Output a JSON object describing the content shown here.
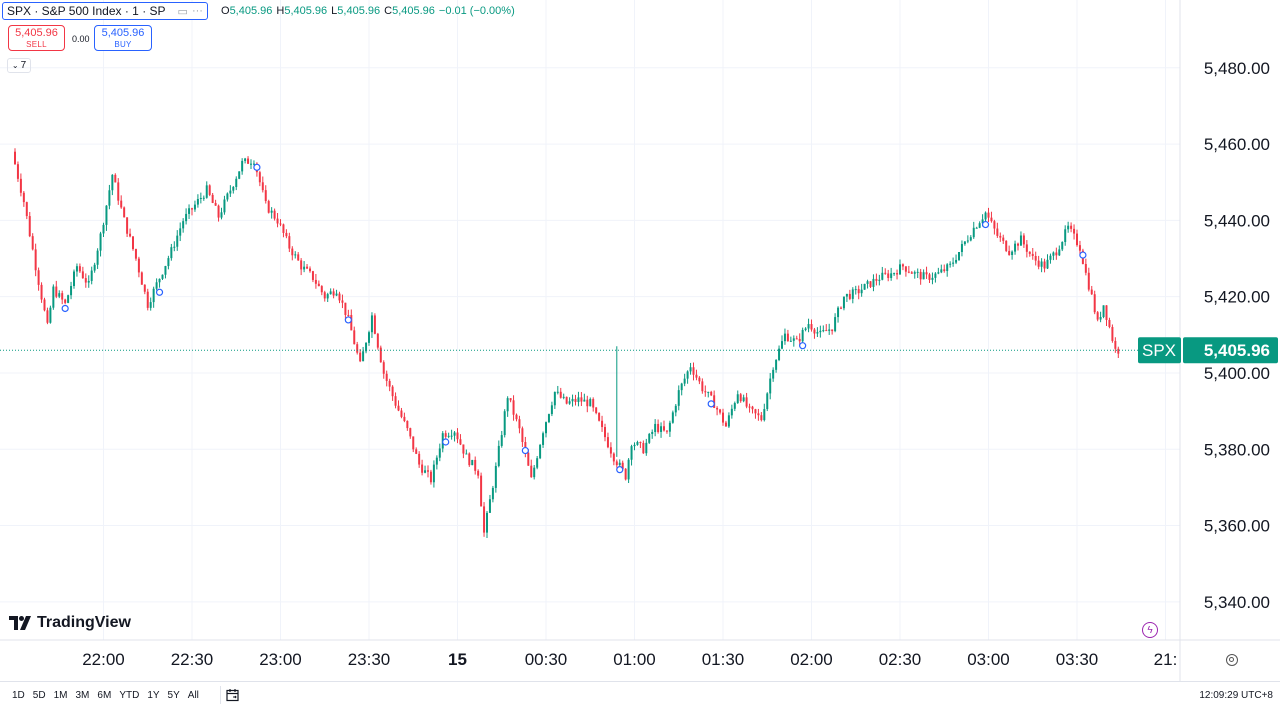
{
  "header": {
    "symbol_title": "SPX · S&P 500 Index · 1 · SP",
    "ohlc": {
      "o_label": "O",
      "o_value": "5,405.96",
      "h_label": "H",
      "h_value": "5,405.96",
      "l_label": "L",
      "l_value": "5,405.96",
      "c_label": "C",
      "c_value": "5,405.96",
      "change": "−0.01 (−0.00%)"
    },
    "sell_price": "5,405.96",
    "sell_label": "SELL",
    "spread": "0.00",
    "buy_price": "5,405.96",
    "buy_label": "BUY",
    "indicators_count": "7"
  },
  "brand": {
    "name": "TradingView"
  },
  "price_tag": {
    "symbol": "SPX",
    "price": "5,405.96"
  },
  "toolbar": {
    "ranges": [
      "1D",
      "5D",
      "1M",
      "3M",
      "6M",
      "YTD",
      "1Y",
      "5Y",
      "All"
    ],
    "clock": "12:09:29 UTC+8"
  },
  "colors": {
    "up": "#089981",
    "down": "#f23645",
    "accent": "#2962ff"
  },
  "chart_data": {
    "type": "candlestick",
    "title": "SPX · S&P 500 Index · 1 · SP",
    "interval": "1",
    "ylim": [
      5330,
      5492
    ],
    "y_ticks": [
      "5,480.00",
      "5,460.00",
      "5,440.00",
      "5,420.00",
      "5,400.00",
      "5,380.00",
      "5,360.00",
      "5,340.00"
    ],
    "y_tick_values": [
      5480,
      5460,
      5440,
      5420,
      5400,
      5380,
      5360,
      5340
    ],
    "x_tick_labels": [
      "22:00",
      "22:30",
      "23:00",
      "23:30",
      "15",
      "00:30",
      "01:00",
      "01:30",
      "02:00",
      "02:30",
      "03:00",
      "03:30",
      "21:"
    ],
    "x_tick_minutes": [
      30,
      60,
      90,
      120,
      150,
      180,
      210,
      240,
      270,
      300,
      330,
      360,
      390
    ],
    "last_price": 5405.96,
    "path": [
      [
        0,
        5458
      ],
      [
        4,
        5445
      ],
      [
        8,
        5428
      ],
      [
        12,
        5412
      ],
      [
        14,
        5422
      ],
      [
        18,
        5418
      ],
      [
        22,
        5428
      ],
      [
        26,
        5423
      ],
      [
        30,
        5436
      ],
      [
        34,
        5452
      ],
      [
        38,
        5440
      ],
      [
        42,
        5430
      ],
      [
        46,
        5418
      ],
      [
        50,
        5425
      ],
      [
        54,
        5432
      ],
      [
        58,
        5440
      ],
      [
        62,
        5444
      ],
      [
        66,
        5448
      ],
      [
        70,
        5441
      ],
      [
        74,
        5448
      ],
      [
        78,
        5455
      ],
      [
        82,
        5456
      ],
      [
        86,
        5444
      ],
      [
        90,
        5440
      ],
      [
        94,
        5433
      ],
      [
        98,
        5428
      ],
      [
        102,
        5425
      ],
      [
        106,
        5420
      ],
      [
        110,
        5422
      ],
      [
        114,
        5414
      ],
      [
        118,
        5402
      ],
      [
        122,
        5415
      ],
      [
        126,
        5400
      ],
      [
        130,
        5392
      ],
      [
        134,
        5385
      ],
      [
        138,
        5376
      ],
      [
        142,
        5372
      ],
      [
        146,
        5384
      ],
      [
        150,
        5385
      ],
      [
        154,
        5378
      ],
      [
        158,
        5374
      ],
      [
        160,
        5358
      ],
      [
        164,
        5375
      ],
      [
        168,
        5394
      ],
      [
        172,
        5385
      ],
      [
        176,
        5372
      ],
      [
        180,
        5385
      ],
      [
        184,
        5395
      ],
      [
        188,
        5392
      ],
      [
        192,
        5393
      ],
      [
        196,
        5392
      ],
      [
        200,
        5385
      ],
      [
        204,
        5378
      ],
      [
        208,
        5373
      ],
      [
        210,
        5382
      ],
      [
        214,
        5380
      ],
      [
        218,
        5386
      ],
      [
        222,
        5384
      ],
      [
        226,
        5395
      ],
      [
        230,
        5402
      ],
      [
        234,
        5396
      ],
      [
        238,
        5392
      ],
      [
        242,
        5386
      ],
      [
        246,
        5395
      ],
      [
        250,
        5390
      ],
      [
        254,
        5388
      ],
      [
        258,
        5402
      ],
      [
        262,
        5410
      ],
      [
        266,
        5408
      ],
      [
        270,
        5413
      ],
      [
        274,
        5410
      ],
      [
        278,
        5412
      ],
      [
        282,
        5420
      ],
      [
        286,
        5421
      ],
      [
        290,
        5423
      ],
      [
        294,
        5425
      ],
      [
        298,
        5426
      ],
      [
        302,
        5428
      ],
      [
        306,
        5426
      ],
      [
        310,
        5425
      ],
      [
        314,
        5426
      ],
      [
        318,
        5428
      ],
      [
        322,
        5433
      ],
      [
        326,
        5438
      ],
      [
        330,
        5442
      ],
      [
        334,
        5436
      ],
      [
        338,
        5432
      ],
      [
        342,
        5435
      ],
      [
        346,
        5430
      ],
      [
        350,
        5428
      ],
      [
        354,
        5432
      ],
      [
        358,
        5438
      ],
      [
        362,
        5433
      ],
      [
        364,
        5426
      ],
      [
        366,
        5420
      ],
      [
        368,
        5413
      ],
      [
        370,
        5418
      ],
      [
        372,
        5412
      ],
      [
        374,
        5406
      ]
    ],
    "markers_minutes": [
      17,
      49,
      82,
      113,
      146,
      173,
      205,
      236,
      267,
      329,
      362
    ],
    "candles_per_point": 2
  }
}
